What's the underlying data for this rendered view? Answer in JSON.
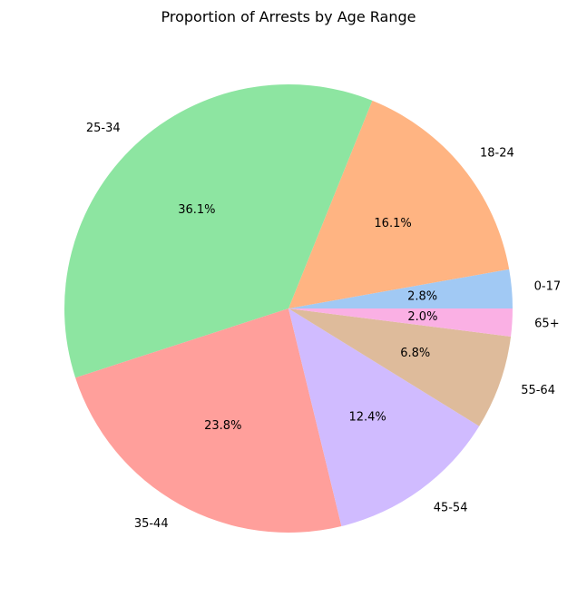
{
  "chart_data": {
    "type": "pie",
    "title": "Proportion of Arrests by Age Range",
    "labels": [
      "0-17",
      "18-24",
      "25-34",
      "35-44",
      "45-54",
      "55-64",
      "65+"
    ],
    "values": [
      2.8,
      16.1,
      36.1,
      23.8,
      12.4,
      6.8,
      2.0
    ],
    "value_labels": [
      "2.8%",
      "16.1%",
      "36.1%",
      "23.8%",
      "12.4%",
      "6.8%",
      "2.0%"
    ],
    "colors": [
      "#a1c9f4",
      "#ffb482",
      "#8de5a1",
      "#ff9f9b",
      "#d0bbff",
      "#debb9b",
      "#fab0e4"
    ],
    "start_angle_deg": 0,
    "direction": "counterclockwise",
    "legend": "none"
  }
}
